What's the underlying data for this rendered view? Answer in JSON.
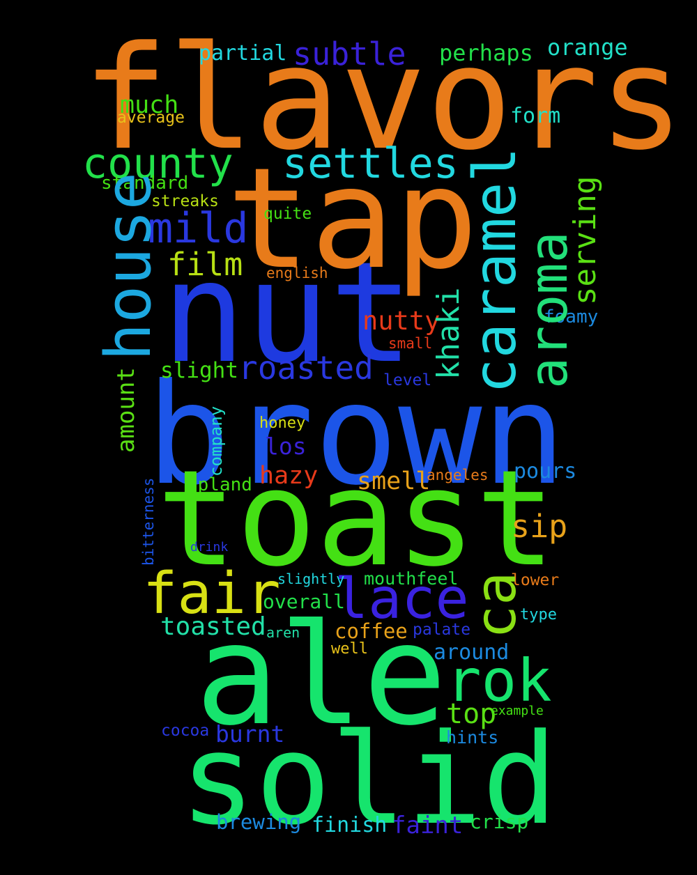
{
  "background": "#000000",
  "words_horizontal": [
    {
      "text": "flavors"
    },
    {
      "text": "brown"
    },
    {
      "text": "toast"
    },
    {
      "text": "nut"
    },
    {
      "text": "tap"
    },
    {
      "text": "ale"
    },
    {
      "text": "solid"
    },
    {
      "text": "fair"
    },
    {
      "text": "lace"
    },
    {
      "text": "rok"
    },
    {
      "text": "county"
    },
    {
      "text": "settles"
    },
    {
      "text": "mild"
    },
    {
      "text": "subtle"
    },
    {
      "text": "roasted"
    },
    {
      "text": "film"
    },
    {
      "text": "sip"
    },
    {
      "text": "top"
    },
    {
      "text": "nutty"
    },
    {
      "text": "smell"
    },
    {
      "text": "hazy"
    },
    {
      "text": "toasted"
    },
    {
      "text": "perhaps"
    },
    {
      "text": "orange"
    },
    {
      "text": "partial"
    },
    {
      "text": "much"
    },
    {
      "text": "average"
    },
    {
      "text": "form"
    },
    {
      "text": "standard"
    },
    {
      "text": "streaks"
    },
    {
      "text": "quite"
    },
    {
      "text": "english"
    },
    {
      "text": "foamy"
    },
    {
      "text": "small"
    },
    {
      "text": "slight"
    },
    {
      "text": "level"
    },
    {
      "text": "honey"
    },
    {
      "text": "los"
    },
    {
      "text": "upland"
    },
    {
      "text": "angeles"
    },
    {
      "text": "pours"
    },
    {
      "text": "drink"
    },
    {
      "text": "slightly"
    },
    {
      "text": "mouthfeel"
    },
    {
      "text": "lower"
    },
    {
      "text": "type"
    },
    {
      "text": "overall"
    },
    {
      "text": "aren"
    },
    {
      "text": "coffee"
    },
    {
      "text": "palate"
    },
    {
      "text": "well"
    },
    {
      "text": "around"
    },
    {
      "text": "example"
    },
    {
      "text": "cocoa"
    },
    {
      "text": "burnt"
    },
    {
      "text": "hints"
    },
    {
      "text": "brewing"
    },
    {
      "text": "finish"
    },
    {
      "text": "faint"
    },
    {
      "text": "crisp"
    }
  ],
  "words_vertical": [
    {
      "text": "house"
    },
    {
      "text": "caramel"
    },
    {
      "text": "aroma"
    },
    {
      "text": "serving"
    },
    {
      "text": "khaki"
    },
    {
      "text": "ca"
    },
    {
      "text": "amount"
    },
    {
      "text": "company"
    },
    {
      "text": "bitterness"
    }
  ]
}
